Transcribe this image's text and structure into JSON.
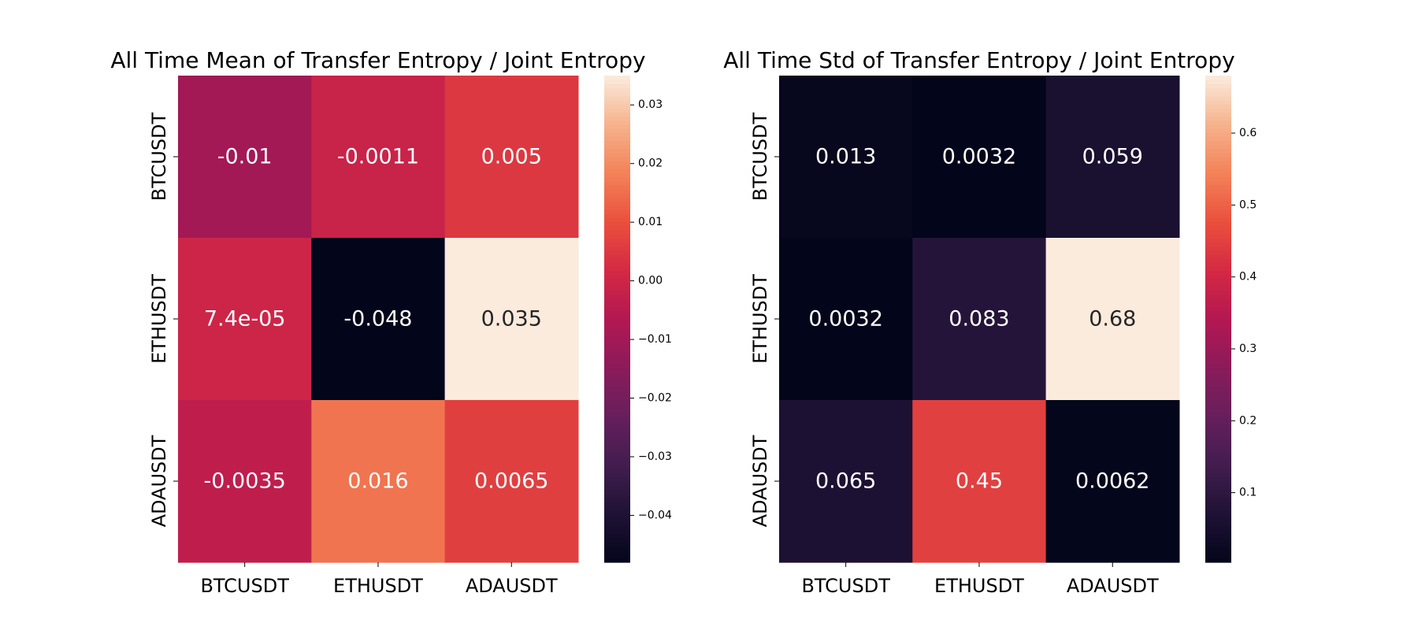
{
  "chart_data": [
    {
      "type": "heatmap",
      "title": "All Time Mean of Transfer Entropy / Joint Entropy",
      "xlabel": "",
      "ylabel": "",
      "x_labels": [
        "BTCUSDT",
        "ETHUSDT",
        "ADAUSDT"
      ],
      "y_labels": [
        "BTCUSDT",
        "ETHUSDT",
        "ADAUSDT"
      ],
      "values": [
        [
          -0.01,
          -0.0011,
          0.005
        ],
        [
          7.4e-05,
          -0.048,
          0.035
        ],
        [
          -0.0035,
          0.016,
          0.0065
        ]
      ],
      "annotations": [
        [
          "-0.01",
          "-0.0011",
          "0.005"
        ],
        [
          "7.4e-05",
          "-0.048",
          "0.035"
        ],
        [
          "-0.0035",
          "0.016",
          "0.0065"
        ]
      ],
      "colorbar": {
        "colormap": "rocket",
        "vmin": -0.048,
        "vmax": 0.035,
        "ticks": [
          -0.04,
          -0.03,
          -0.02,
          -0.01,
          0.0,
          0.01,
          0.02,
          0.03
        ],
        "tick_labels": [
          "−0.04",
          "−0.03",
          "−0.02",
          "−0.01",
          "0.00",
          "0.01",
          "0.02",
          "0.03"
        ]
      }
    },
    {
      "type": "heatmap",
      "title": "All Time Std of Transfer Entropy / Joint Entropy",
      "xlabel": "",
      "ylabel": "",
      "x_labels": [
        "BTCUSDT",
        "ETHUSDT",
        "ADAUSDT"
      ],
      "y_labels": [
        "BTCUSDT",
        "ETHUSDT",
        "ADAUSDT"
      ],
      "values": [
        [
          0.013,
          0.0032,
          0.059
        ],
        [
          0.0032,
          0.083,
          0.68
        ],
        [
          0.065,
          0.45,
          0.0062
        ]
      ],
      "annotations": [
        [
          "0.013",
          "0.0032",
          "0.059"
        ],
        [
          "0.0032",
          "0.083",
          "0.68"
        ],
        [
          "0.065",
          "0.45",
          "0.0062"
        ]
      ],
      "colorbar": {
        "colormap": "rocket",
        "vmin": 0.0032,
        "vmax": 0.68,
        "ticks": [
          0.1,
          0.2,
          0.3,
          0.4,
          0.5,
          0.6
        ],
        "tick_labels": [
          "0.1",
          "0.2",
          "0.3",
          "0.4",
          "0.5",
          "0.6"
        ]
      }
    }
  ]
}
